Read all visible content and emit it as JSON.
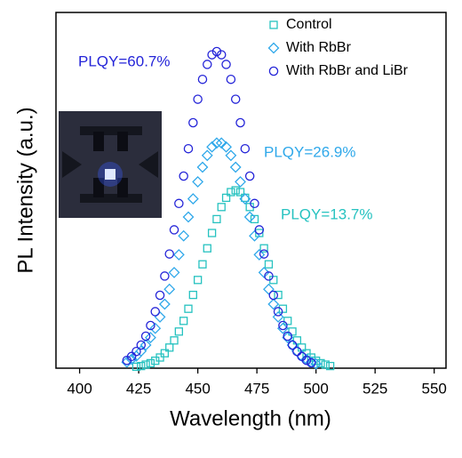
{
  "chart_data": {
    "type": "scatter",
    "xlabel": "Wavelength (nm)",
    "ylabel": "PL Intensity (a.u.)",
    "xlim": [
      390,
      555
    ],
    "xticks": [
      400,
      425,
      450,
      475,
      500,
      525,
      550
    ],
    "ylim": [
      0,
      1
    ],
    "x": [
      420,
      422,
      424,
      426,
      428,
      430,
      432,
      434,
      436,
      438,
      440,
      442,
      444,
      446,
      448,
      450,
      452,
      454,
      456,
      458,
      460,
      462,
      464,
      466,
      468,
      470,
      472,
      474,
      476,
      478,
      480,
      482,
      484,
      486,
      488,
      490,
      492,
      494,
      496,
      498,
      500,
      502,
      504,
      506
    ],
    "series": [
      {
        "name": "Control",
        "color": "#26c2c0",
        "marker": "square",
        "values": [
          null,
          null,
          0.004,
          0.006,
          0.01,
          0.014,
          0.021,
          0.03,
          0.042,
          0.058,
          0.078,
          0.103,
          0.133,
          0.167,
          0.206,
          0.248,
          0.292,
          0.337,
          0.38,
          0.419,
          0.453,
          0.479,
          0.495,
          0.5,
          0.495,
          0.479,
          0.453,
          0.419,
          0.38,
          0.337,
          0.292,
          0.248,
          0.206,
          0.167,
          0.133,
          0.103,
          0.078,
          0.058,
          0.042,
          0.03,
          0.021,
          0.014,
          0.01,
          0.006
        ]
      },
      {
        "name": "With RbBr",
        "color": "#2fa8ea",
        "marker": "diamond",
        "values": [
          0.017,
          0.025,
          0.034,
          0.048,
          0.065,
          0.086,
          0.112,
          0.144,
          0.18,
          0.222,
          0.269,
          0.319,
          0.372,
          0.425,
          0.476,
          0.524,
          0.565,
          0.598,
          0.622,
          0.633,
          0.633,
          0.622,
          0.598,
          0.565,
          0.524,
          0.476,
          0.425,
          0.372,
          0.319,
          0.269,
          0.222,
          0.18,
          0.144,
          0.112,
          0.086,
          0.065,
          0.048,
          0.034,
          0.025,
          0.017,
          0.012,
          null,
          null,
          null
        ]
      },
      {
        "name": "With RbBr and LiBr",
        "color": "#2424d8",
        "marker": "circle",
        "values": [
          0.022,
          0.033,
          0.047,
          0.065,
          0.09,
          0.12,
          0.159,
          0.205,
          0.259,
          0.321,
          0.389,
          0.463,
          0.54,
          0.617,
          0.69,
          0.756,
          0.812,
          0.854,
          0.881,
          0.89,
          0.881,
          0.854,
          0.812,
          0.756,
          0.69,
          0.617,
          0.54,
          0.463,
          0.389,
          0.321,
          0.259,
          0.205,
          0.159,
          0.12,
          0.09,
          0.065,
          0.047,
          0.033,
          0.022,
          0.015,
          null,
          null,
          null,
          null
        ]
      }
    ],
    "annotations": [
      {
        "text": "PLQY=60.7%",
        "color": "#2424d8"
      },
      {
        "text": "PLQY=26.9%",
        "color": "#2fa8ea"
      },
      {
        "text": "PLQY=13.7%",
        "color": "#26c2c0"
      }
    ]
  }
}
